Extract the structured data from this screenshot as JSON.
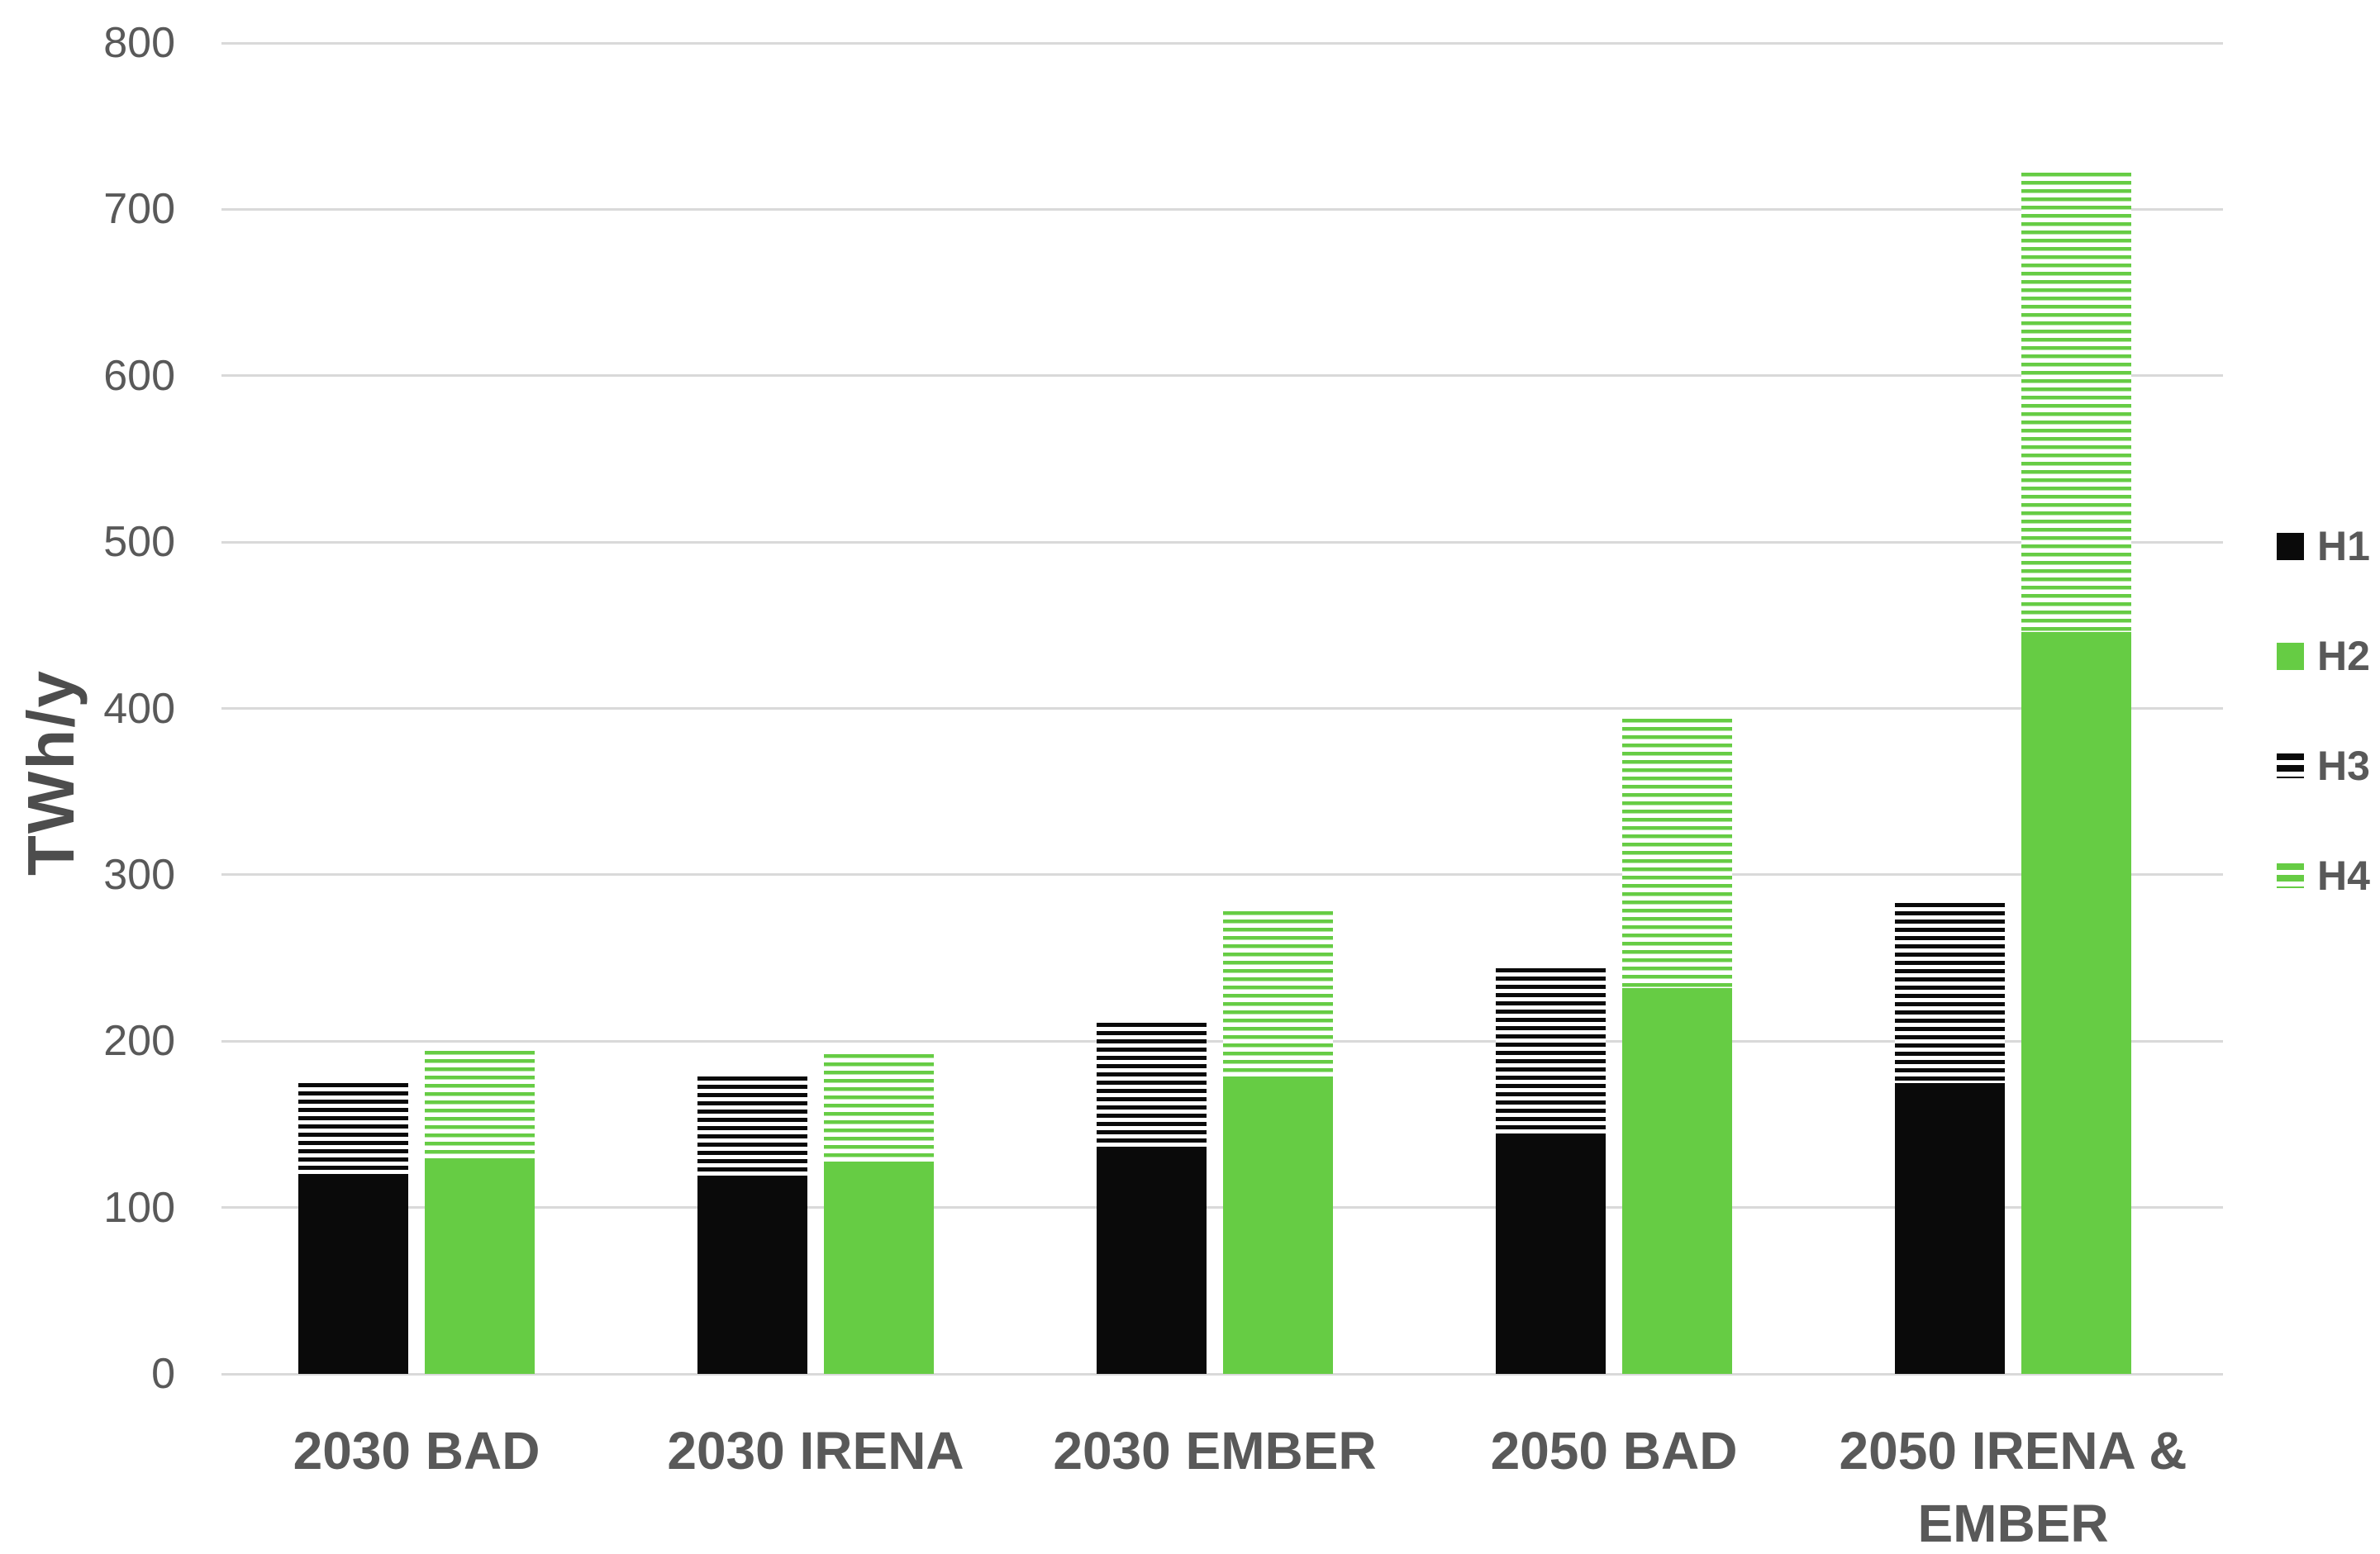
{
  "chart_data": {
    "type": "bar",
    "stacked": true,
    "title": "",
    "xlabel": "",
    "ylabel": "TWh/y",
    "ylim": [
      0,
      800
    ],
    "ytick_step": 100,
    "ytick_labels": [
      "0",
      "100",
      "200",
      "300",
      "400",
      "500",
      "600",
      "700",
      "800"
    ],
    "grid": true,
    "legend_position": "right",
    "categories": [
      "2030 BAD",
      "2030 IRENA",
      "2030 EMBER",
      "2050 BAD",
      "2050 IRENA & EMBER"
    ],
    "series": [
      {
        "name": "H1",
        "color": "#0a0a0a",
        "pattern": "solid",
        "stack": "left-bar",
        "values": [
          118,
          118,
          134,
          144,
          175
        ]
      },
      {
        "name": "H2",
        "color": "#66cc44",
        "pattern": "solid",
        "stack": "right-bar",
        "values": [
          129,
          126,
          178,
          232,
          446
        ]
      },
      {
        "name": "H3",
        "color": "#0a0a0a",
        "pattern": "striped",
        "stack": "left-bar",
        "values": [
          57,
          61,
          77,
          100,
          108
        ]
      },
      {
        "name": "H4",
        "color": "#66cc44",
        "pattern": "striped",
        "stack": "right-bar",
        "values": [
          65,
          66,
          100,
          162,
          276
        ]
      }
    ]
  },
  "colors": {
    "green": "#66cc44",
    "black": "#0a0a0a",
    "gridline": "#d9d9d9",
    "axis_text": "#595959",
    "axis_title_text": "#4d4d4d",
    "background": "#ffffff"
  }
}
